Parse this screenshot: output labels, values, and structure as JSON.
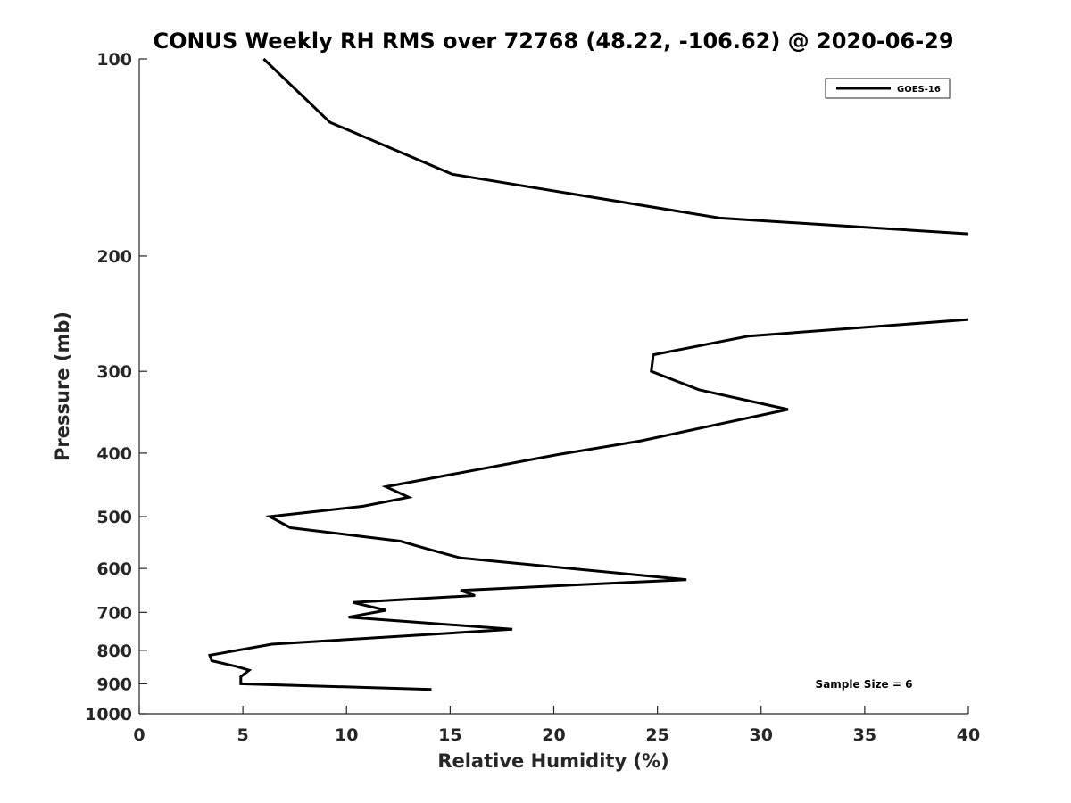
{
  "chart_data": {
    "type": "line",
    "title": "CONUS Weekly RH RMS over 72768 (48.22, -106.62) @ 2020-06-29",
    "xlabel": "Relative Humidity (%)",
    "ylabel": "Pressure (mb)",
    "xlim": [
      0,
      40
    ],
    "ylim": [
      100,
      1000
    ],
    "yscale": "log",
    "y_reversed": true,
    "grid": false,
    "legend_position": "top-right",
    "x_ticks": [
      0,
      5,
      10,
      15,
      20,
      25,
      30,
      35,
      40
    ],
    "x_tick_labels": [
      "0",
      "5",
      "10",
      "15",
      "20",
      "25",
      "30",
      "35",
      "40"
    ],
    "y_ticks": [
      100,
      200,
      300,
      400,
      500,
      600,
      700,
      800,
      900,
      1000
    ],
    "y_tick_labels": [
      "100",
      "200",
      "300",
      "400",
      "500",
      "600",
      "700",
      "800",
      "900",
      "1000"
    ],
    "annotation": "Sample Size = 6",
    "series": [
      {
        "name": "GOES-16",
        "color": "#000000",
        "segments": [
          {
            "x": [
              6.0,
              9.2,
              15.1,
              28.0,
              40.0
            ],
            "y": [
              100,
              125,
              150,
              175,
              185
            ]
          },
          {
            "x": [
              40.0,
              29.4,
              24.8,
              24.7,
              27.0,
              31.3,
              27.3,
              24.2,
              20.2,
              11.9,
              13.0,
              10.8,
              6.3,
              7.3,
              12.6,
              13.9,
              15.5,
              26.4,
              15.5,
              16.2,
              10.3,
              11.9,
              10.1,
              18.0,
              6.4,
              3.4,
              3.5,
              4.7,
              5.3,
              4.9,
              4.9,
              14.1
            ],
            "y": [
              250,
              265,
              283,
              300,
              320,
              343,
              365,
              383,
              402,
              450,
              467,
              482,
              500,
              520,
              545,
              560,
              578,
              624,
              648,
              660,
              676,
              695,
              712,
              743,
              783,
              814,
              830,
              847,
              858,
              878,
              900,
              918
            ]
          }
        ]
      }
    ]
  }
}
